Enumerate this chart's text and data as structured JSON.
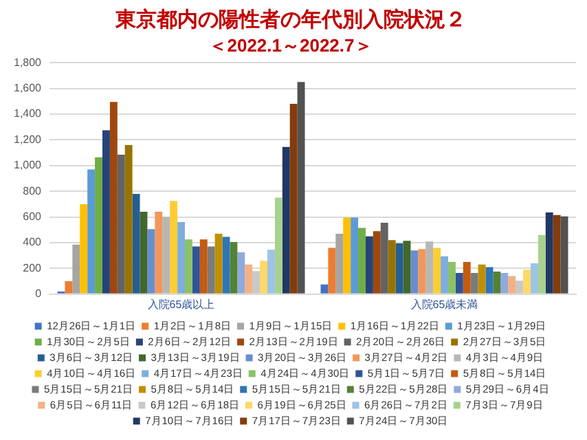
{
  "chart_data": {
    "type": "bar",
    "title": "東京都内の陽性者の年代別入院状況２",
    "subtitle": "＜2022.1～2022.7＞",
    "categories": [
      "入院65歳以上",
      "入院65歳未満"
    ],
    "ylim": [
      0,
      1800
    ],
    "yticks": [
      {
        "value": 0,
        "label": "0"
      },
      {
        "value": 200,
        "label": "200"
      },
      {
        "value": 400,
        "label": "400"
      },
      {
        "value": 600,
        "label": "600"
      },
      {
        "value": 800,
        "label": "800"
      },
      {
        "value": 1000,
        "label": "1,000"
      },
      {
        "value": 1200,
        "label": "1,200"
      },
      {
        "value": 1400,
        "label": "1,400"
      },
      {
        "value": 1600,
        "label": "1,600"
      },
      {
        "value": 1800,
        "label": "1,800"
      }
    ],
    "grid": "y",
    "legend": "bottom",
    "series": [
      {
        "name": "12月26日～1月1日",
        "color": "#4472c4",
        "values": [
          20,
          75
        ]
      },
      {
        "name": "1月2日～1月8日",
        "color": "#ed7d31",
        "values": [
          100,
          360
        ]
      },
      {
        "name": "1月9日～1月15日",
        "color": "#a5a5a5",
        "values": [
          385,
          470
        ]
      },
      {
        "name": "1月16日～1月22日",
        "color": "#ffc000",
        "values": [
          700,
          595
        ]
      },
      {
        "name": "1月23日～1月29日",
        "color": "#5b9bd5",
        "values": [
          970,
          595
        ]
      },
      {
        "name": "1月30日～2月5日",
        "color": "#70ad47",
        "values": [
          1065,
          515
        ]
      },
      {
        "name": "2月6日～2月12日",
        "color": "#264478",
        "values": [
          1275,
          450
        ]
      },
      {
        "name": "2月13日～2月19日",
        "color": "#9e480e",
        "values": [
          1495,
          490
        ]
      },
      {
        "name": "2月20日～2月26日",
        "color": "#636363",
        "values": [
          1085,
          555
        ]
      },
      {
        "name": "2月27日～3月5日",
        "color": "#997300",
        "values": [
          1160,
          420
        ]
      },
      {
        "name": "3月6日～3月12日",
        "color": "#255e91",
        "values": [
          780,
          395
        ]
      },
      {
        "name": "3月13日～3月19日",
        "color": "#43682b",
        "values": [
          640,
          415
        ]
      },
      {
        "name": "3月20日～3月26日",
        "color": "#698ed0",
        "values": [
          505,
          340
        ]
      },
      {
        "name": "3月27日～4月2日",
        "color": "#f1975a",
        "values": [
          640,
          350
        ]
      },
      {
        "name": "4月3日～4月9日",
        "color": "#b7b7b7",
        "values": [
          600,
          410
        ]
      },
      {
        "name": "4月10日～4月16日",
        "color": "#ffcd33",
        "values": [
          725,
          360
        ]
      },
      {
        "name": "4月17日～4月23日",
        "color": "#7cafdd",
        "values": [
          560,
          295
        ]
      },
      {
        "name": "4月24日～4月30日",
        "color": "#8cc168",
        "values": [
          425,
          250
        ]
      },
      {
        "name": "5月1日～5月7日",
        "color": "#2f5597",
        "values": [
          370,
          165
        ]
      },
      {
        "name": "5月8日～5月14日",
        "color": "#c55a11",
        "values": [
          425,
          250
        ]
      },
      {
        "name": "5月15日～5月21日",
        "color": "#7b7b7b",
        "values": [
          370,
          165
        ]
      },
      {
        "name": "5月8日～5月14日",
        "color": "#bf9000",
        "values": [
          470,
          230
        ]
      },
      {
        "name": "5月15日～5月21日",
        "color": "#2e75b6",
        "values": [
          445,
          210
        ]
      },
      {
        "name": "5月22日～5月28日",
        "color": "#548235",
        "values": [
          405,
          175
        ]
      },
      {
        "name": "5月29日～6月4日",
        "color": "#8faadc",
        "values": [
          325,
          165
        ]
      },
      {
        "name": "6月5日～6月11日",
        "color": "#f4b183",
        "values": [
          230,
          140
        ]
      },
      {
        "name": "6月12日～6月18日",
        "color": "#c9c9c9",
        "values": [
          180,
          105
        ]
      },
      {
        "name": "6月19日～6月25日",
        "color": "#ffd966",
        "values": [
          260,
          190
        ]
      },
      {
        "name": "6月26日～7月2日",
        "color": "#9dc3e6",
        "values": [
          345,
          240
        ]
      },
      {
        "name": "7月3日～7月9日",
        "color": "#a9d18e",
        "values": [
          750,
          460
        ]
      },
      {
        "name": "7月10日～7月16日",
        "color": "#203864",
        "values": [
          1145,
          635
        ]
      },
      {
        "name": "7月17日～7月23日",
        "color": "#843c0c",
        "values": [
          1480,
          615
        ]
      },
      {
        "name": "7月24日～7月30日",
        "color": "#525252",
        "values": [
          1650,
          605
        ]
      }
    ]
  }
}
